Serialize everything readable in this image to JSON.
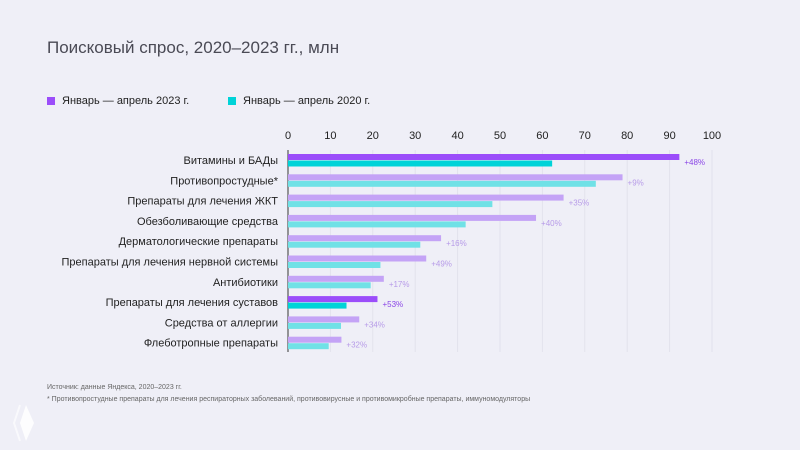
{
  "chart_data": {
    "type": "bar",
    "orientation": "horizontal",
    "title": "Поисковый спрос, 2020–2023 гг., млн",
    "categories": [
      "Витамины и БАДы",
      "Противопростудные*",
      "Препараты для лечения ЖКТ",
      "Обезболивающие средства",
      "Дерматологические препараты",
      "Препараты для лечения нервной системы",
      "Антибиотики",
      "Препараты для лечения суставов",
      "Средства от аллергии",
      "Флеботропные препараты"
    ],
    "series": [
      {
        "name": "Январь — апрель 2023 г.",
        "values": [
          92.3,
          78.9,
          65.0,
          58.5,
          36.1,
          32.6,
          22.6,
          21.1,
          16.8,
          12.6
        ]
      },
      {
        "name": "Январь — апрель 2020 г.",
        "values": [
          62.3,
          72.6,
          48.2,
          41.9,
          31.2,
          21.8,
          19.5,
          13.8,
          12.5,
          9.6
        ]
      }
    ],
    "growth_labels": [
      "+48%",
      "+9%",
      "+35%",
      "+40%",
      "+16%",
      "+49%",
      "+17%",
      "+53%",
      "+34%",
      "+32%"
    ],
    "highlighted": [
      0,
      7
    ],
    "xlim": [
      0,
      100
    ],
    "xticks": [
      0,
      10,
      20,
      30,
      40,
      50,
      60,
      70,
      80,
      90,
      100
    ],
    "grid": true,
    "legend": "top-left",
    "colors": {
      "2023": "#9b4dfa",
      "2020": "#00d3d8",
      "2023_light": "#c4a3f6",
      "2020_light": "#70e1e6",
      "label_light": "#b79be8",
      "label_strong": "#8a45e6"
    }
  },
  "footer": {
    "source": "Источник: данные Яндекса, 2020–2023 гг.",
    "note": "* Противопростудные препараты для лечения респираторных заболеваний, противовирусные и противомикробные препараты, иммуномодуляторы"
  }
}
